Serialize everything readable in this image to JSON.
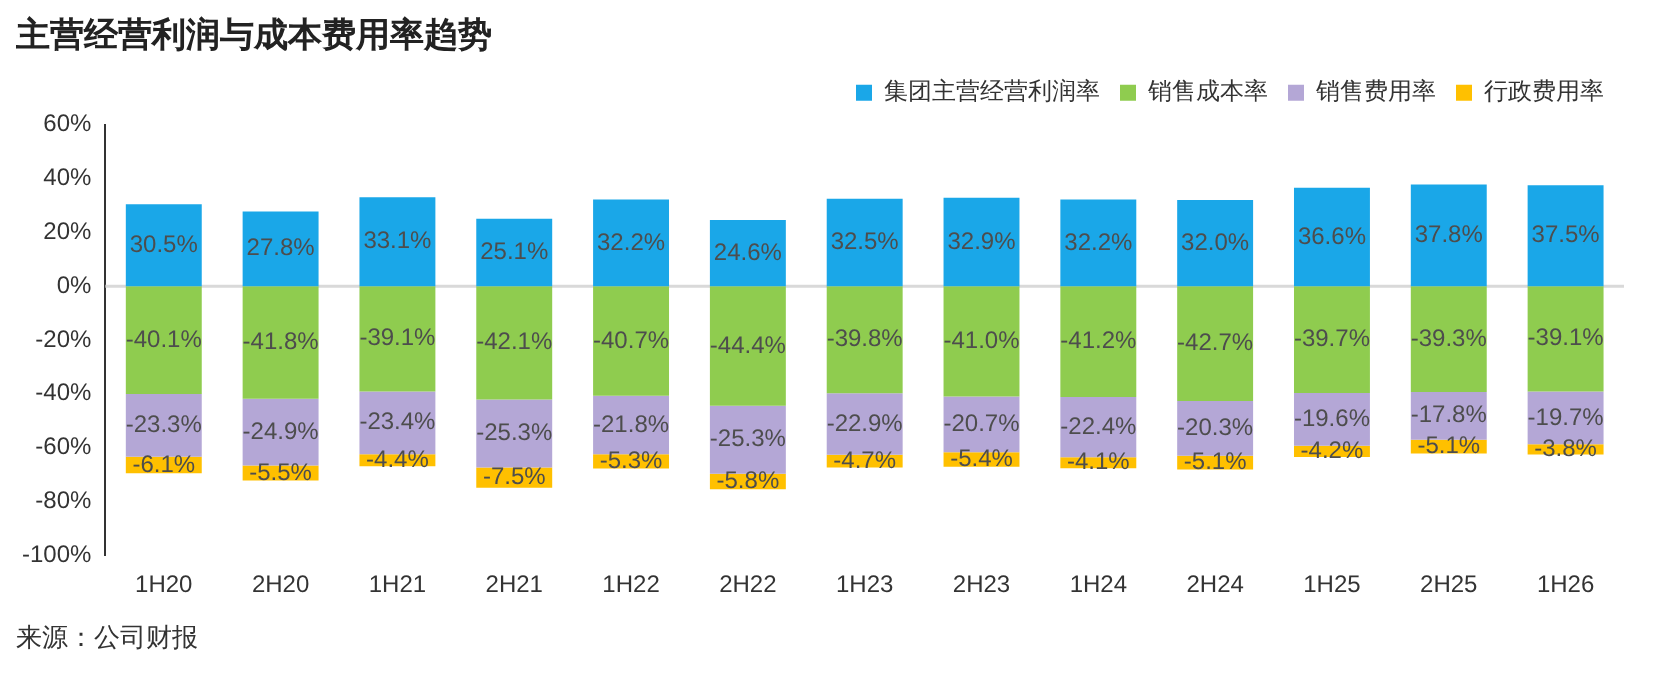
{
  "chart_data": {
    "type": "bar",
    "title": "主营经营利润与成本费用率趋势",
    "annotations": [
      "来源：公司财报"
    ],
    "categories": [
      "1H20",
      "2H20",
      "1H21",
      "2H21",
      "1H22",
      "2H22",
      "1H23",
      "2H23",
      "1H24",
      "2H24",
      "1H25",
      "2H25",
      "1H26"
    ],
    "stacked": true,
    "legend": "top right",
    "grid": false,
    "ylim": [
      -100,
      60
    ],
    "yticks": [
      {
        "value": -100,
        "label": "-100%"
      },
      {
        "value": -80,
        "label": "-80%"
      },
      {
        "value": -60,
        "label": "-60%"
      },
      {
        "value": -40,
        "label": "-40%"
      },
      {
        "value": -20,
        "label": "-20%"
      },
      {
        "value": 0,
        "label": "0%"
      },
      {
        "value": 20,
        "label": "20%"
      },
      {
        "value": 40,
        "label": "40%"
      },
      {
        "value": 60,
        "label": "60%"
      }
    ],
    "ref_lines": [
      {
        "axis": "y",
        "value": 0,
        "color": "#d9d9d9"
      }
    ],
    "series": [
      {
        "name": "集团主营经营利润率",
        "color": "#1aa7e8",
        "values": [
          30.5,
          27.8,
          33.1,
          25.1,
          32.2,
          24.6,
          32.5,
          32.9,
          32.2,
          32.0,
          36.6,
          37.8,
          37.5
        ],
        "value_labels": [
          "30.5%",
          "27.8%",
          "33.1%",
          "25.1%",
          "32.2%",
          "24.6%",
          "32.5%",
          "32.9%",
          "32.2%",
          "32.0%",
          "36.6%",
          "37.8%",
          "37.5%"
        ]
      },
      {
        "name": "销售成本率",
        "color": "#8fcc4f",
        "values": [
          -40.1,
          -41.8,
          -39.1,
          -42.1,
          -40.7,
          -44.4,
          -39.8,
          -41.0,
          -41.2,
          -42.7,
          -39.7,
          -39.3,
          -39.1
        ],
        "value_labels": [
          "-40.1%",
          "-41.8%",
          "-39.1%",
          "-42.1%",
          "-40.7%",
          "-44.4%",
          "-39.8%",
          "-41.0%",
          "-41.2%",
          "-42.7%",
          "-39.7%",
          "-39.3%",
          "-39.1%"
        ]
      },
      {
        "name": "销售费用率",
        "color": "#b4a7d6",
        "values": [
          -23.3,
          -24.9,
          -23.4,
          -25.3,
          -21.8,
          -25.3,
          -22.9,
          -20.7,
          -22.4,
          -20.3,
          -19.6,
          -17.8,
          -19.7
        ],
        "value_labels": [
          "-23.3%",
          "-24.9%",
          "-23.4%",
          "-25.3%",
          "-21.8%",
          "-25.3%",
          "-22.9%",
          "-20.7%",
          "-22.4%",
          "-20.3%",
          "-19.6%",
          "-17.8%",
          "-19.7%"
        ]
      },
      {
        "name": "行政费用率",
        "color": "#ffc000",
        "values": [
          -6.1,
          -5.5,
          -4.4,
          -7.5,
          -5.3,
          -5.8,
          -4.7,
          -5.4,
          -4.1,
          -5.1,
          -4.2,
          -5.1,
          -3.8
        ],
        "value_labels": [
          "-6.1%",
          "-5.5%",
          "-4.4%",
          "-7.5%",
          "-5.3%",
          "-5.8%",
          "-4.7%",
          "-5.4%",
          "-4.1%",
          "-5.1%",
          "-4.2%",
          "-5.1%",
          "-3.8%"
        ]
      }
    ]
  }
}
